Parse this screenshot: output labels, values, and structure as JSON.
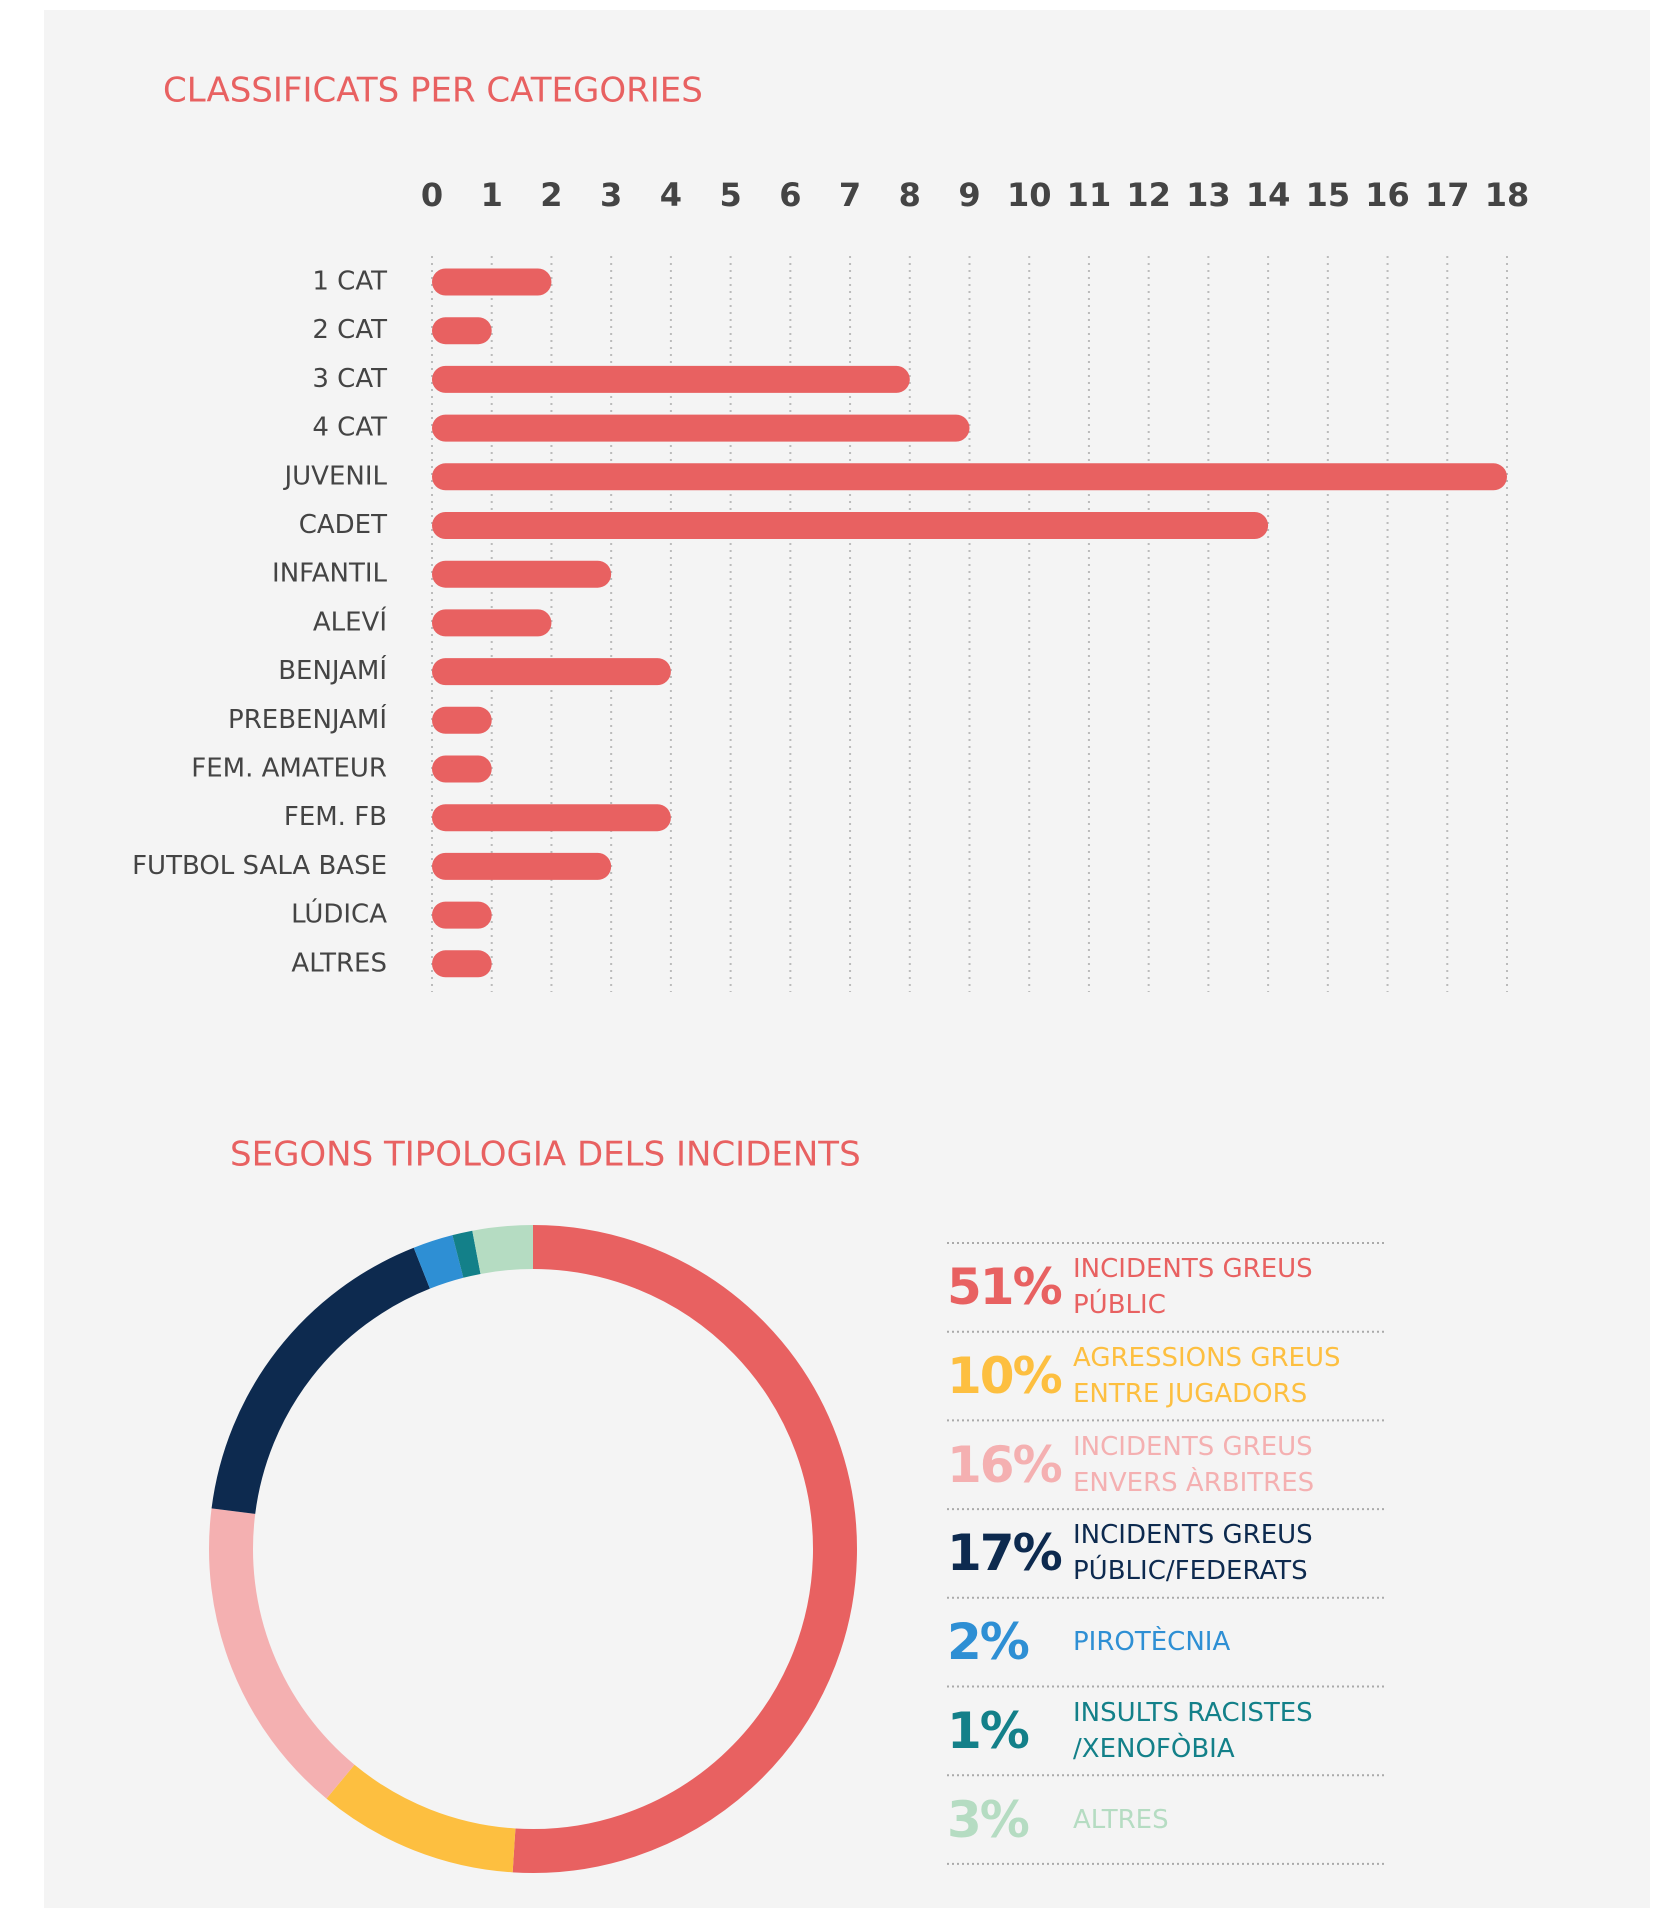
{
  "chart_data": [
    {
      "type": "barh",
      "title": "CLASSIFICATS PER CATEGORIES",
      "categories": [
        "1 CAT",
        "2 CAT",
        "3 CAT",
        "4 CAT",
        "JUVENIL",
        "CADET",
        "INFANTIL",
        "ALEVÍ",
        "BENJAMÍ",
        "PREBENJAMÍ",
        "FEM. AMATEUR",
        "FEM. FB",
        "FUTBOL SALA BASE",
        "LÚDICA",
        "ALTRES"
      ],
      "values": [
        2,
        1,
        8,
        9,
        18,
        14,
        3,
        2,
        4,
        1,
        1,
        4,
        3,
        1,
        1
      ],
      "color": "#e86161",
      "xlim": [
        0,
        18
      ],
      "xticks": [
        0,
        1,
        2,
        3,
        4,
        5,
        6,
        7,
        8,
        9,
        10,
        11,
        12,
        13,
        14,
        15,
        16,
        17,
        18
      ],
      "grid": true
    },
    {
      "type": "donut",
      "title": "SEGONS TIPOLOGIA DELS INCIDENTS",
      "categories": [
        "INCIDENTS GREUS PÚBLIC",
        "AGRESSIONS GREUS ENTRE JUGADORS",
        "INCIDENTS GREUS ENVERS ÀRBITRES",
        "INCIDENTS GREUS PÚBLIC/FEDERATS",
        "PIROTÈCNIA",
        "INSULTS RACISTES /XENOFÒBIA",
        "ALTRES"
      ],
      "values": [
        51,
        10,
        16,
        17,
        2,
        1,
        3
      ],
      "value_labels": [
        "51%",
        "10%",
        "16%",
        "17%",
        "2%",
        "1%",
        "3%"
      ],
      "colors": [
        "#e86161",
        "#fdbf40",
        "#f4b0b1",
        "#0d2a4f",
        "#2e8fd4",
        "#138089",
        "#b5dcc2"
      ]
    }
  ]
}
